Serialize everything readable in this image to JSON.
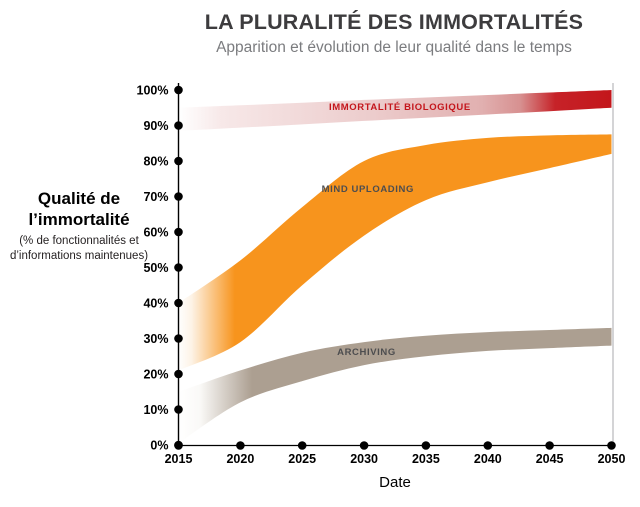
{
  "chart_data": {
    "type": "area",
    "title": "LA PLURALITÉ DES IMMORTALITÉS",
    "subtitle": "Apparition et évolution de leur qualité dans le temps",
    "xlabel": "Date",
    "ylabel_line1": "Qualité de",
    "ylabel_line2": "l’immortalité",
    "ylabel_note_line1": "(% de fonctionnalités et",
    "ylabel_note_line2": "d’informations maintenues)",
    "xlim": [
      2015,
      2050
    ],
    "ylim": [
      0,
      100
    ],
    "grid": false,
    "legend": "labels drawn on bands",
    "x_ticks": [
      {
        "v": 2015,
        "label": "2015"
      },
      {
        "v": 2020,
        "label": "2020"
      },
      {
        "v": 2025,
        "label": "2025"
      },
      {
        "v": 2030,
        "label": "2030"
      },
      {
        "v": 2035,
        "label": "2035"
      },
      {
        "v": 2040,
        "label": "2040"
      },
      {
        "v": 2045,
        "label": "2045"
      },
      {
        "v": 2050,
        "label": "2050"
      }
    ],
    "y_ticks": [
      {
        "v": 0,
        "label": "0%"
      },
      {
        "v": 10,
        "label": "10%"
      },
      {
        "v": 20,
        "label": "20%"
      },
      {
        "v": 30,
        "label": "30%"
      },
      {
        "v": 40,
        "label": "40%"
      },
      {
        "v": 50,
        "label": "50%"
      },
      {
        "v": 60,
        "label": "60%"
      },
      {
        "v": 70,
        "label": "70%"
      },
      {
        "v": 80,
        "label": "80%"
      },
      {
        "v": 90,
        "label": "90%"
      },
      {
        "v": 100,
        "label": "100%"
      }
    ],
    "x": [
      2015,
      2020,
      2025,
      2030,
      2035,
      2040,
      2045,
      2050
    ],
    "series": [
      {
        "name": "IMMORTALITÉ BIOLOGIQUE",
        "shape": "band",
        "top": [
          95.0,
          95.7,
          96.4,
          97.2,
          97.9,
          98.6,
          99.3,
          100.0
        ],
        "bottom": [
          88.5,
          89.4,
          90.3,
          91.3,
          92.2,
          93.1,
          94.0,
          95.0
        ],
        "label_color": "#c4161c",
        "label_at": {
          "x": 2032.9,
          "y": 94.4
        },
        "gradient": [
          {
            "o": 0.0,
            "c": "#ffffff"
          },
          {
            "o": 0.1,
            "c": "#f7e8e8"
          },
          {
            "o": 0.45,
            "c": "#eccccc"
          },
          {
            "o": 0.7,
            "c": "#e1b0b0"
          },
          {
            "o": 0.79,
            "c": "#d79090"
          },
          {
            "o": 0.87,
            "c": "#c62228"
          },
          {
            "o": 1.0,
            "c": "#c3161b"
          }
        ]
      },
      {
        "name": "MIND UPLOADING",
        "shape": "band",
        "top": [
          40.0,
          52.0,
          67.0,
          80.0,
          84.5,
          86.5,
          87.2,
          87.5
        ],
        "bottom": [
          21.0,
          29.0,
          45.0,
          59.0,
          69.0,
          74.0,
          78.0,
          82.0
        ],
        "label_color": "#4d4d4f",
        "label_at": {
          "x": 2030.3,
          "y": 71.3
        },
        "gradient": [
          {
            "o": 0.0,
            "c": "#ffffff"
          },
          {
            "o": 0.03,
            "c": "#fdf3e6"
          },
          {
            "o": 0.13,
            "c": "#f7941d"
          },
          {
            "o": 1.0,
            "c": "#f7941d"
          }
        ]
      },
      {
        "name": "ARCHIVING",
        "shape": "band",
        "top": [
          15.0,
          21.0,
          26.0,
          29.0,
          30.8,
          31.8,
          32.4,
          33.0
        ],
        "bottom": [
          0.5,
          12.0,
          18.0,
          22.5,
          25.0,
          26.5,
          27.3,
          28.0
        ],
        "label_color": "#4d4d4f",
        "label_at": {
          "x": 2030.2,
          "y": 25.4
        },
        "gradient": [
          {
            "o": 0.0,
            "c": "#ffffff"
          },
          {
            "o": 0.05,
            "c": "#faf9f7"
          },
          {
            "o": 0.17,
            "c": "#ac9f91"
          },
          {
            "o": 1.0,
            "c": "#ac9f91"
          }
        ]
      }
    ],
    "axis": {
      "color": "#000000",
      "dot_color": "#000000",
      "right_border_color": "#c9cacb"
    }
  }
}
